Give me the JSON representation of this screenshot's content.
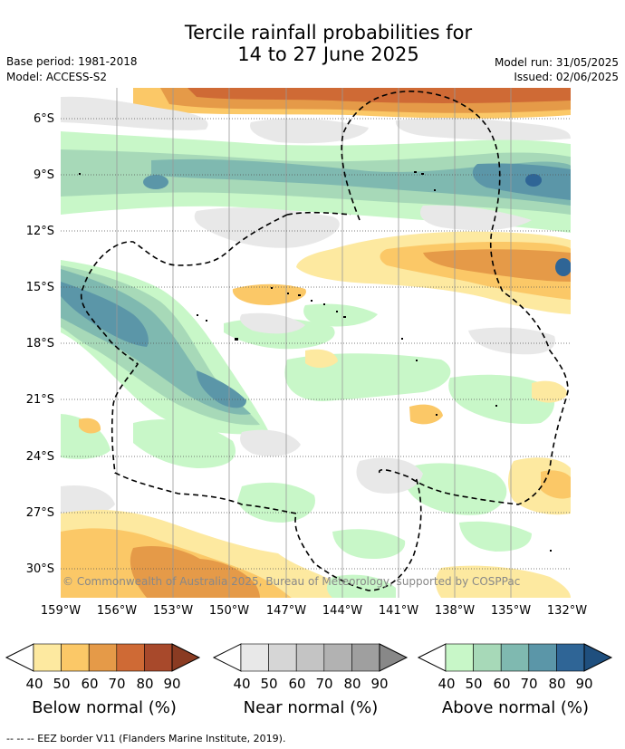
{
  "title": {
    "line1": "Tercile rainfall probabilities for",
    "line2": "14 to 27 June 2025"
  },
  "meta": {
    "base_period": "Base period: 1981-2018",
    "model": "Model: ACCESS-S2",
    "model_run": "Model run: 31/05/2025",
    "issued": "Issued: 02/06/2025"
  },
  "map": {
    "latitude_labels": [
      "6°S",
      "9°S",
      "12°S",
      "15°S",
      "18°S",
      "21°S",
      "24°S",
      "27°S",
      "30°S"
    ],
    "longitude_labels": [
      "159°W",
      "156°W",
      "153°W",
      "150°W",
      "147°W",
      "144°W",
      "141°W",
      "138°W",
      "135°W",
      "132°W"
    ],
    "copyright": "© Commonwealth of Australia 2025, Bureau of Meteorology, supported by COSPPac"
  },
  "legends": [
    {
      "title": "Below normal (%)",
      "ticks": [
        "40",
        "50",
        "60",
        "70",
        "80",
        "90"
      ],
      "colors": [
        "#fde9a0",
        "#fbc867",
        "#e59a48",
        "#cf6a35",
        "#a8492b",
        "#8a3b22"
      ]
    },
    {
      "title": "Near normal (%)",
      "ticks": [
        "40",
        "50",
        "60",
        "70",
        "80",
        "90"
      ],
      "colors": [
        "#e8e8e8",
        "#d6d6d6",
        "#c4c4c4",
        "#b2b2b2",
        "#9f9f9f",
        "#888888"
      ]
    },
    {
      "title": "Above normal (%)",
      "ticks": [
        "40",
        "50",
        "60",
        "70",
        "80",
        "90"
      ],
      "colors": [
        "#c8f7c8",
        "#a7d9b8",
        "#7fb9b0",
        "#5b96a8",
        "#2f6596",
        "#1f4f7e"
      ]
    }
  ],
  "footer": "--  --  -- EEZ border V11 (Flanders Marine Institute, 2019)."
}
